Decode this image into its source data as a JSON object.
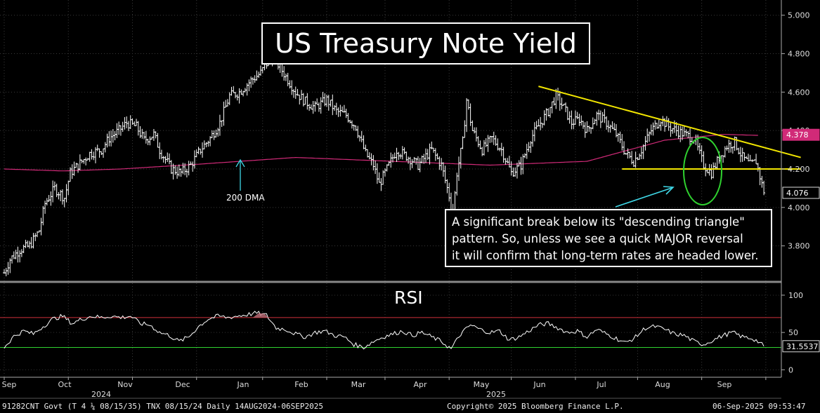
{
  "chart_data": [
    {
      "type": "ohlc",
      "title": "US Treasury Note Yield",
      "security": "91282CNT Govt (T 4 ¼ 08/15/35) TNX 08/15/24",
      "period": "Daily 14AUG2024-06SEP2025",
      "ylim": [
        3.62,
        5.05
      ],
      "yticks": [
        3.8,
        4.0,
        4.2,
        4.4,
        4.6,
        4.8,
        5.0
      ],
      "ytick_labels": [
        "3.800",
        "4.000",
        "4.200",
        "4.400",
        "4.600",
        "4.800",
        "5.000"
      ],
      "x_months": [
        "Sep",
        "Oct",
        "Nov",
        "Dec",
        "Jan",
        "Feb",
        "Mar",
        "Apr",
        "May",
        "Jun",
        "Jul",
        "Aug",
        "Sep"
      ],
      "x_years": [
        "2024",
        "2025"
      ],
      "close_anchors": [
        [
          0,
          3.66
        ],
        [
          3,
          3.73
        ],
        [
          8,
          3.78
        ],
        [
          13,
          3.8
        ],
        [
          18,
          3.88
        ],
        [
          21,
          4.02
        ],
        [
          26,
          4.1
        ],
        [
          31,
          4.05
        ],
        [
          34,
          4.18
        ],
        [
          38,
          4.22
        ],
        [
          44,
          4.28
        ],
        [
          50,
          4.3
        ],
        [
          54,
          4.36
        ],
        [
          59,
          4.4
        ],
        [
          63,
          4.44
        ],
        [
          68,
          4.42
        ],
        [
          72,
          4.35
        ],
        [
          77,
          4.38
        ],
        [
          80,
          4.3
        ],
        [
          86,
          4.2
        ],
        [
          91,
          4.18
        ],
        [
          96,
          4.22
        ],
        [
          101,
          4.3
        ],
        [
          106,
          4.36
        ],
        [
          111,
          4.44
        ],
        [
          116,
          4.58
        ],
        [
          121,
          4.6
        ],
        [
          127,
          4.66
        ],
        [
          132,
          4.7
        ],
        [
          137,
          4.78
        ],
        [
          140,
          4.76
        ],
        [
          145,
          4.68
        ],
        [
          150,
          4.6
        ],
        [
          155,
          4.55
        ],
        [
          160,
          4.52
        ],
        [
          166,
          4.56
        ],
        [
          171,
          4.5
        ],
        [
          176,
          4.48
        ],
        [
          181,
          4.42
        ],
        [
          186,
          4.28
        ],
        [
          190,
          4.22
        ],
        [
          193,
          4.12
        ],
        [
          197,
          4.2
        ],
        [
          202,
          4.3
        ],
        [
          208,
          4.26
        ],
        [
          213,
          4.22
        ],
        [
          220,
          4.3
        ],
        [
          225,
          4.22
        ],
        [
          229,
          4.06
        ],
        [
          231,
          3.96
        ],
        [
          233,
          4.18
        ],
        [
          236,
          4.34
        ],
        [
          238,
          4.56
        ],
        [
          241,
          4.4
        ],
        [
          246,
          4.3
        ],
        [
          251,
          4.36
        ],
        [
          256,
          4.3
        ],
        [
          261,
          4.18
        ],
        [
          266,
          4.22
        ],
        [
          271,
          4.36
        ],
        [
          276,
          4.44
        ],
        [
          280,
          4.5
        ],
        [
          284,
          4.58
        ],
        [
          288,
          4.52
        ],
        [
          292,
          4.44
        ],
        [
          296,
          4.46
        ],
        [
          300,
          4.4
        ],
        [
          305,
          4.48
        ],
        [
          310,
          4.44
        ],
        [
          315,
          4.38
        ],
        [
          320,
          4.28
        ],
        [
          324,
          4.24
        ],
        [
          328,
          4.3
        ],
        [
          333,
          4.4
        ],
        [
          338,
          4.46
        ],
        [
          342,
          4.42
        ],
        [
          346,
          4.4
        ],
        [
          350,
          4.38
        ],
        [
          355,
          4.36
        ],
        [
          360,
          4.22
        ],
        [
          364,
          4.18
        ],
        [
          368,
          4.26
        ],
        [
          372,
          4.32
        ],
        [
          376,
          4.34
        ],
        [
          380,
          4.26
        ],
        [
          384,
          4.22
        ],
        [
          387,
          4.24
        ],
        [
          389,
          4.16
        ],
        [
          391,
          4.076
        ]
      ],
      "dma_label": "200 DMA",
      "dma_anchors": [
        [
          0,
          4.2
        ],
        [
          30,
          4.19
        ],
        [
          60,
          4.2
        ],
        [
          100,
          4.225
        ],
        [
          150,
          4.26
        ],
        [
          200,
          4.24
        ],
        [
          250,
          4.22
        ],
        [
          300,
          4.24
        ],
        [
          340,
          4.35
        ],
        [
          370,
          4.38
        ],
        [
          388,
          4.375
        ]
      ],
      "resistance_line": {
        "from": [
          275,
          4.63
        ],
        "to": [
          410,
          4.26
        ]
      },
      "support_line": {
        "from": [
          318,
          4.2
        ],
        "to": [
          410,
          4.2
        ]
      },
      "last_price": "4.076",
      "dma_value": "4.378",
      "annotation": [
        "A significant break below its \"descending triangle\"",
        "pattern. So, unless we see a quick MAJOR reversal",
        "it will confirm that long-term rates are headed lower."
      ]
    },
    {
      "type": "line",
      "title": "RSI",
      "ylim": [
        -10,
        115
      ],
      "yticks": [
        0,
        50,
        100
      ],
      "upper_band": 70,
      "lower_band": 30,
      "last_value": "31.5537",
      "value_anchors": [
        [
          0,
          30
        ],
        [
          5,
          45
        ],
        [
          10,
          52
        ],
        [
          15,
          48
        ],
        [
          20,
          58
        ],
        [
          25,
          68
        ],
        [
          30,
          72
        ],
        [
          35,
          62
        ],
        [
          40,
          68
        ],
        [
          45,
          72
        ],
        [
          50,
          70
        ],
        [
          55,
          72
        ],
        [
          60,
          70
        ],
        [
          65,
          72
        ],
        [
          70,
          62
        ],
        [
          75,
          60
        ],
        [
          80,
          50
        ],
        [
          85,
          46
        ],
        [
          90,
          38
        ],
        [
          95,
          44
        ],
        [
          100,
          58
        ],
        [
          105,
          68
        ],
        [
          110,
          72
        ],
        [
          115,
          70
        ],
        [
          120,
          72
        ],
        [
          125,
          74
        ],
        [
          130,
          76
        ],
        [
          135,
          73
        ],
        [
          140,
          56
        ],
        [
          145,
          54
        ],
        [
          150,
          48
        ],
        [
          155,
          44
        ],
        [
          160,
          50
        ],
        [
          165,
          52
        ],
        [
          170,
          46
        ],
        [
          175,
          44
        ],
        [
          180,
          34
        ],
        [
          185,
          30
        ],
        [
          190,
          38
        ],
        [
          195,
          44
        ],
        [
          200,
          48
        ],
        [
          205,
          52
        ],
        [
          210,
          46
        ],
        [
          215,
          50
        ],
        [
          220,
          44
        ],
        [
          225,
          38
        ],
        [
          230,
          28
        ],
        [
          235,
          48
        ],
        [
          240,
          60
        ],
        [
          245,
          54
        ],
        [
          250,
          50
        ],
        [
          255,
          52
        ],
        [
          260,
          40
        ],
        [
          265,
          44
        ],
        [
          270,
          52
        ],
        [
          275,
          60
        ],
        [
          280,
          62
        ],
        [
          285,
          56
        ],
        [
          290,
          50
        ],
        [
          295,
          52
        ],
        [
          300,
          44
        ],
        [
          305,
          54
        ],
        [
          310,
          48
        ],
        [
          315,
          42
        ],
        [
          320,
          36
        ],
        [
          325,
          44
        ],
        [
          330,
          56
        ],
        [
          335,
          58
        ],
        [
          340,
          54
        ],
        [
          345,
          48
        ],
        [
          350,
          46
        ],
        [
          355,
          38
        ],
        [
          360,
          34
        ],
        [
          365,
          40
        ],
        [
          370,
          46
        ],
        [
          375,
          50
        ],
        [
          380,
          44
        ],
        [
          385,
          42
        ],
        [
          388,
          38
        ],
        [
          391,
          31.55
        ]
      ]
    }
  ],
  "footer": {
    "left": "91282CNT Govt (T 4 ¼ 08/15/35) TNX  08/15/24  Daily 14AUG2024-06SEP2025",
    "center": "Copyright© 2025 Bloomberg Finance L.P.",
    "right": "06-Sep-2025 09:53:47"
  },
  "colors": {
    "background": "#000000",
    "bars": "#ffffff",
    "dma": "#d12a78",
    "trendline": "#f2e600",
    "rsi_upper": "#d0303a",
    "rsi_lower": "#2fd12f",
    "circle": "#2fd12f",
    "arrow": "#3fd7e6"
  }
}
